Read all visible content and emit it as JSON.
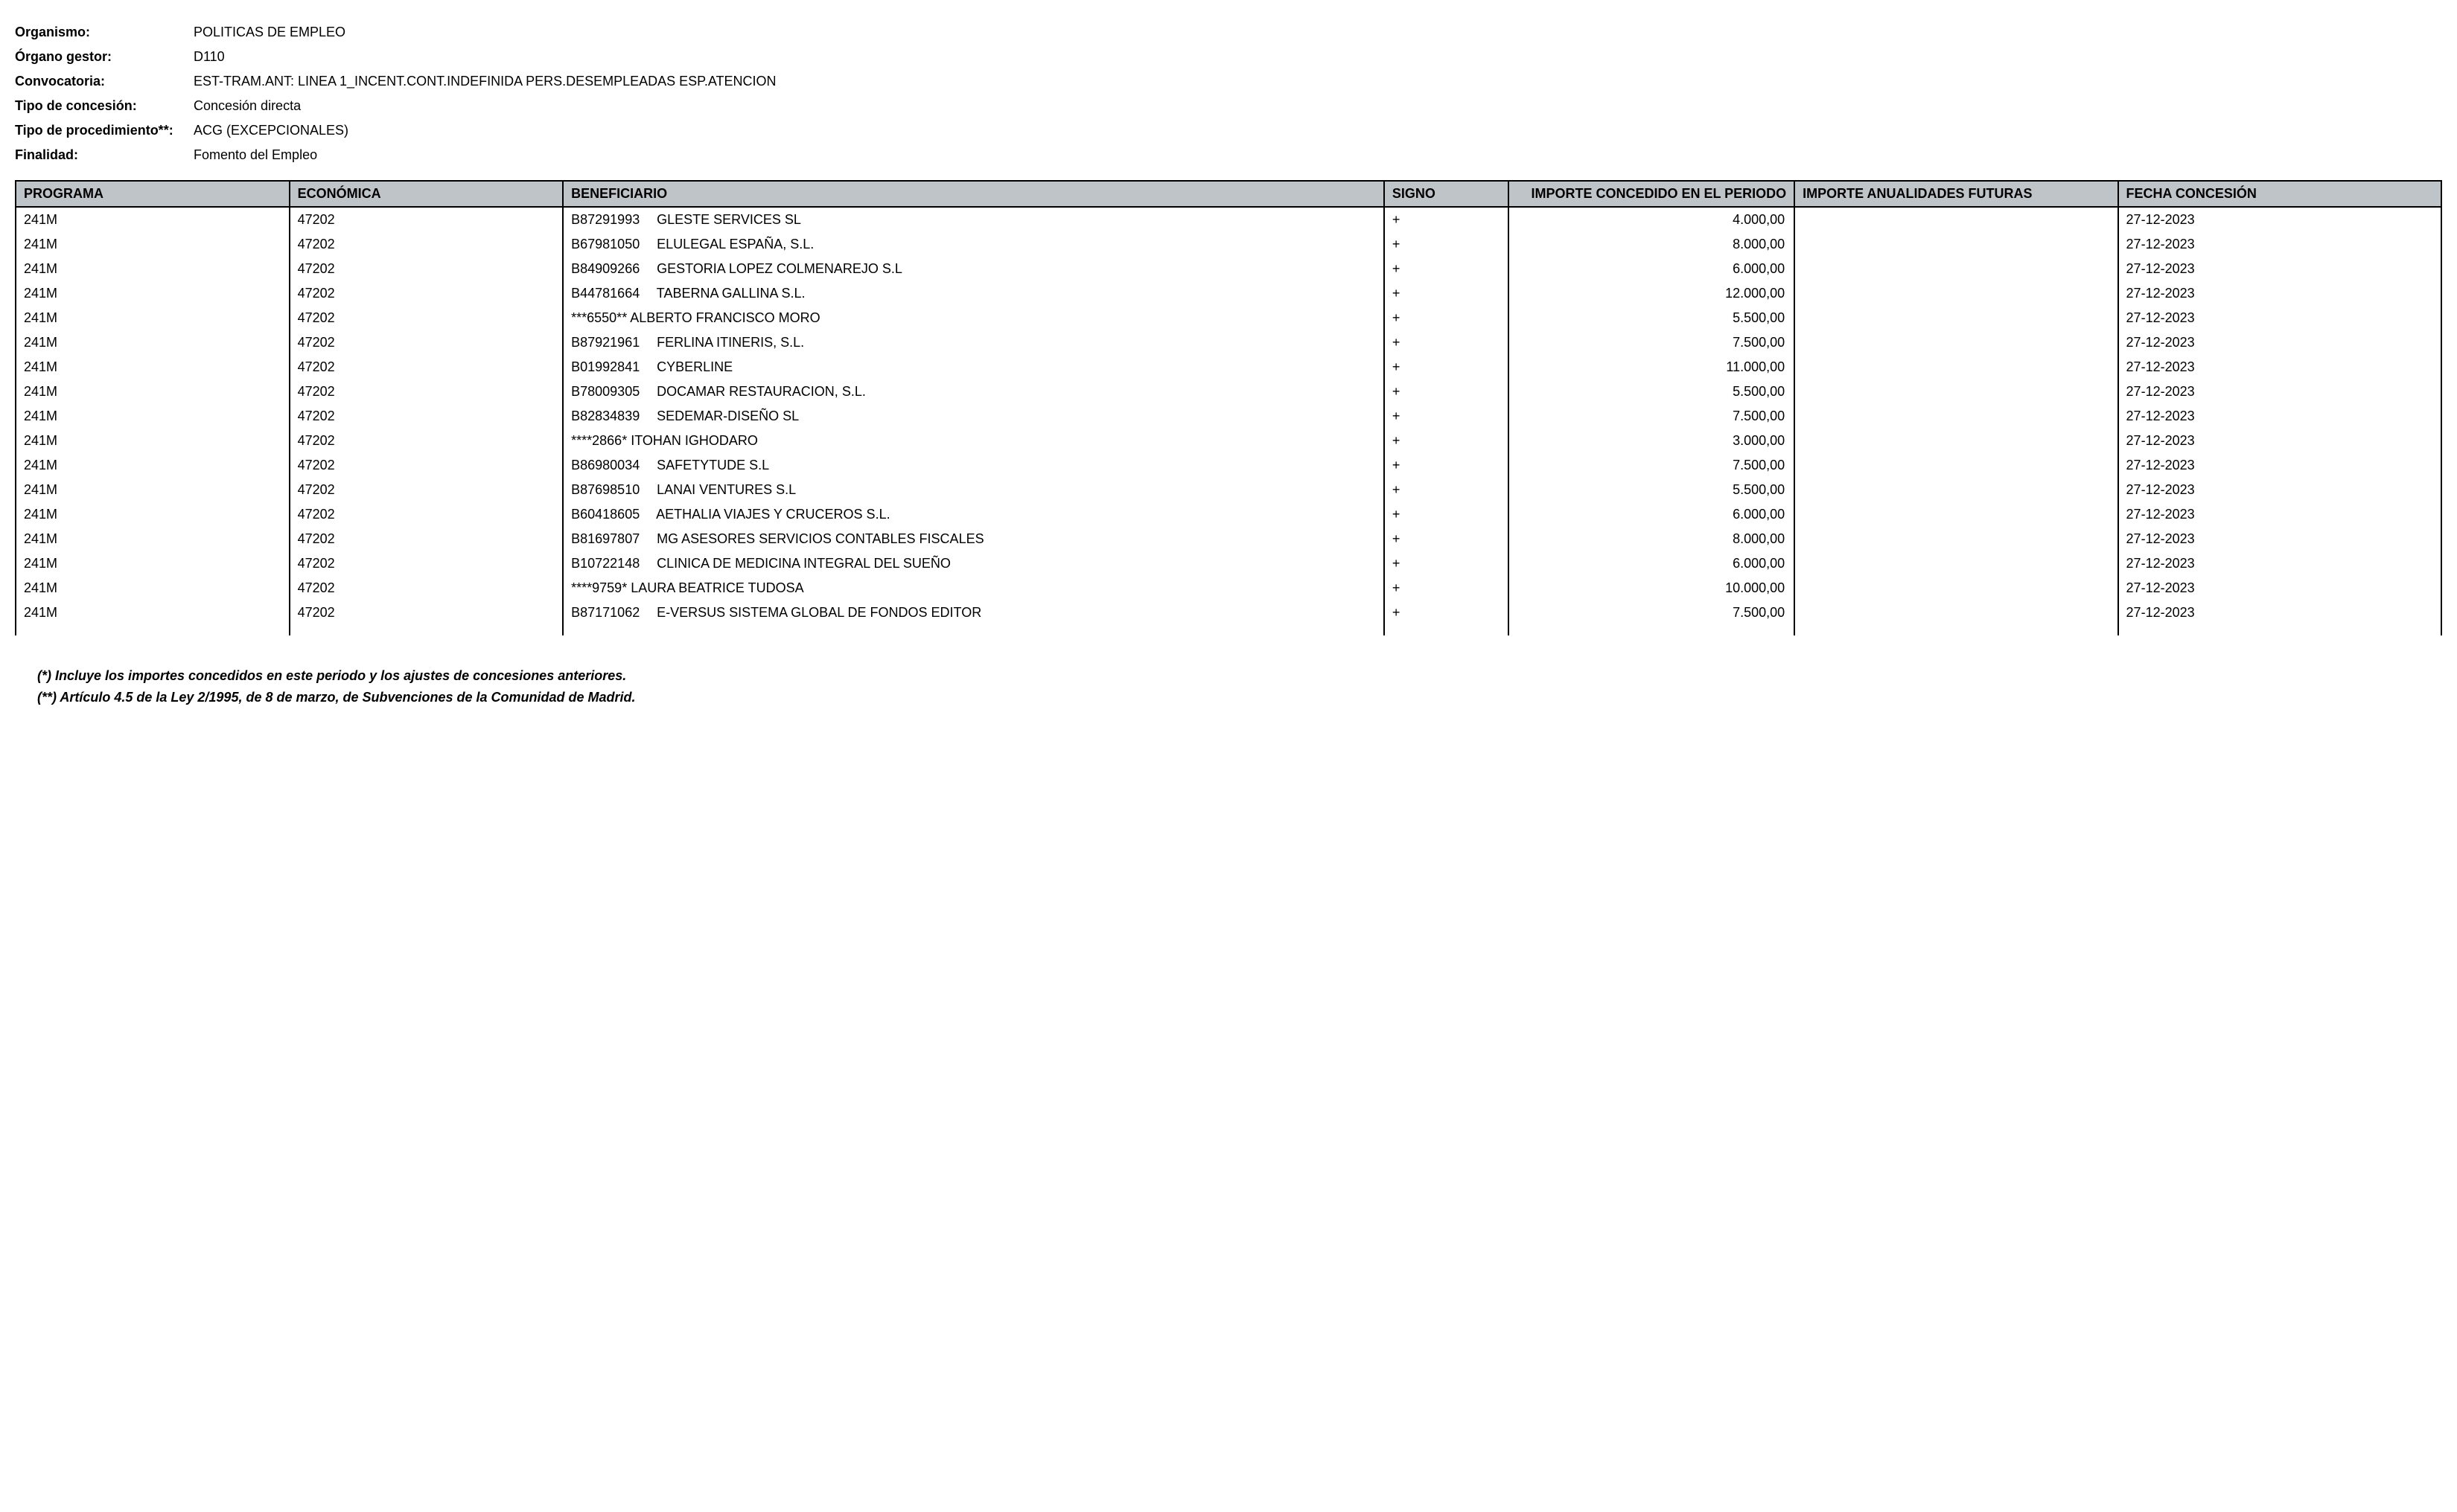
{
  "header": {
    "organismo_label": "Organismo:",
    "organismo_value": "POLITICAS DE EMPLEO",
    "organo_gestor_label": "Órgano gestor:",
    "organo_gestor_value": "D110",
    "convocatoria_label": "Convocatoria:",
    "convocatoria_value": "EST-TRAM.ANT: LINEA 1_INCENT.CONT.INDEFINIDA PERS.DESEMPLEADAS ESP.ATENCION",
    "tipo_concesion_label": "Tipo de concesión:",
    "tipo_concesion_value": "Concesión directa",
    "tipo_procedimiento_label": "Tipo de procedimiento**:",
    "tipo_procedimiento_value": "ACG (EXCEPCIONALES)",
    "finalidad_label": "Finalidad:",
    "finalidad_value": "Fomento del Empleo"
  },
  "table": {
    "columns": {
      "programa": "PROGRAMA",
      "economica": "ECONÓMICA",
      "beneficiario": "BENEFICIARIO",
      "signo": "SIGNO",
      "importe_concedido": "IMPORTE CONCEDIDO EN EL PERIODO",
      "importe_futuras": "IMPORTE ANUALIDADES FUTURAS",
      "fecha_concesion": "FECHA CONCESIÓN"
    },
    "rows": [
      {
        "programa": "241M",
        "economica": "47202",
        "nif": "B87291993",
        "nombre": "GLESTE SERVICES SL",
        "signo": "+",
        "importe": "4.000,00",
        "futuras": "",
        "fecha": "27-12-2023"
      },
      {
        "programa": "241M",
        "economica": "47202",
        "nif": "B67981050",
        "nombre": "ELULEGAL ESPAÑA, S.L.",
        "signo": "+",
        "importe": "8.000,00",
        "futuras": "",
        "fecha": "27-12-2023"
      },
      {
        "programa": "241M",
        "economica": "47202",
        "nif": "B84909266",
        "nombre": "GESTORIA LOPEZ COLMENAREJO S.L",
        "signo": "+",
        "importe": "6.000,00",
        "futuras": "",
        "fecha": "27-12-2023"
      },
      {
        "programa": "241M",
        "economica": "47202",
        "nif": "B44781664",
        "nombre": "TABERNA GALLINA S.L.",
        "signo": "+",
        "importe": "12.000,00",
        "futuras": "",
        "fecha": "27-12-2023"
      },
      {
        "programa": "241M",
        "economica": "47202",
        "nif": "***6550**",
        "nombre": "ALBERTO FRANCISCO MORO",
        "signo": "+",
        "importe": "5.500,00",
        "futuras": "",
        "fecha": "27-12-2023",
        "nospace": true
      },
      {
        "programa": "241M",
        "economica": "47202",
        "nif": "B87921961",
        "nombre": "FERLINA ITINERIS, S.L.",
        "signo": "+",
        "importe": "7.500,00",
        "futuras": "",
        "fecha": "27-12-2023"
      },
      {
        "programa": "241M",
        "economica": "47202",
        "nif": "B01992841",
        "nombre": "CYBERLINE",
        "signo": "+",
        "importe": "11.000,00",
        "futuras": "",
        "fecha": "27-12-2023"
      },
      {
        "programa": "241M",
        "economica": "47202",
        "nif": "B78009305",
        "nombre": "DOCAMAR RESTAURACION, S.L.",
        "signo": "+",
        "importe": "5.500,00",
        "futuras": "",
        "fecha": "27-12-2023"
      },
      {
        "programa": "241M",
        "economica": "47202",
        "nif": "B82834839",
        "nombre": "SEDEMAR-DISEÑO SL",
        "signo": "+",
        "importe": "7.500,00",
        "futuras": "",
        "fecha": "27-12-2023"
      },
      {
        "programa": "241M",
        "economica": "47202",
        "nif": "****2866*",
        "nombre": "ITOHAN IGHODARO",
        "signo": "+",
        "importe": "3.000,00",
        "futuras": "",
        "fecha": "27-12-2023",
        "nospace": true
      },
      {
        "programa": "241M",
        "economica": "47202",
        "nif": "B86980034",
        "nombre": "SAFETYTUDE S.L",
        "signo": "+",
        "importe": "7.500,00",
        "futuras": "",
        "fecha": "27-12-2023"
      },
      {
        "programa": "241M",
        "economica": "47202",
        "nif": "B87698510",
        "nombre": "LANAI VENTURES S.L",
        "signo": "+",
        "importe": "5.500,00",
        "futuras": "",
        "fecha": "27-12-2023"
      },
      {
        "programa": "241M",
        "economica": "47202",
        "nif": "B60418605",
        "nombre": "AETHALIA VIAJES Y CRUCEROS S.L.",
        "signo": "+",
        "importe": "6.000,00",
        "futuras": "",
        "fecha": "27-12-2023"
      },
      {
        "programa": "241M",
        "economica": "47202",
        "nif": "B81697807",
        "nombre": "MG ASESORES SERVICIOS CONTABLES FISCALES",
        "signo": "+",
        "importe": "8.000,00",
        "futuras": "",
        "fecha": "27-12-2023"
      },
      {
        "programa": "241M",
        "economica": "47202",
        "nif": "B10722148",
        "nombre": "CLINICA DE MEDICINA INTEGRAL DEL SUEÑO",
        "signo": "+",
        "importe": "6.000,00",
        "futuras": "",
        "fecha": "27-12-2023"
      },
      {
        "programa": "241M",
        "economica": "47202",
        "nif": "****9759*",
        "nombre": "LAURA BEATRICE TUDOSA",
        "signo": "+",
        "importe": "10.000,00",
        "futuras": "",
        "fecha": "27-12-2023",
        "nospace": true
      },
      {
        "programa": "241M",
        "economica": "47202",
        "nif": "B87171062",
        "nombre": "E-VERSUS SISTEMA GLOBAL DE FONDOS EDITOR",
        "signo": "+",
        "importe": "7.500,00",
        "futuras": "",
        "fecha": "27-12-2023"
      }
    ]
  },
  "footnotes": {
    "line1": "(*) Incluye los importes concedidos en este periodo y los ajustes de concesiones anteriores.",
    "line2": "(**) Artículo 4.5 de la Ley 2/1995, de 8 de marzo, de Subvenciones de la Comunidad de Madrid."
  },
  "styling": {
    "header_bg": "#bfc4c9",
    "border_color": "#000000",
    "body_bg": "#ffffff",
    "font_family": "Arial",
    "base_font_size": 18
  }
}
